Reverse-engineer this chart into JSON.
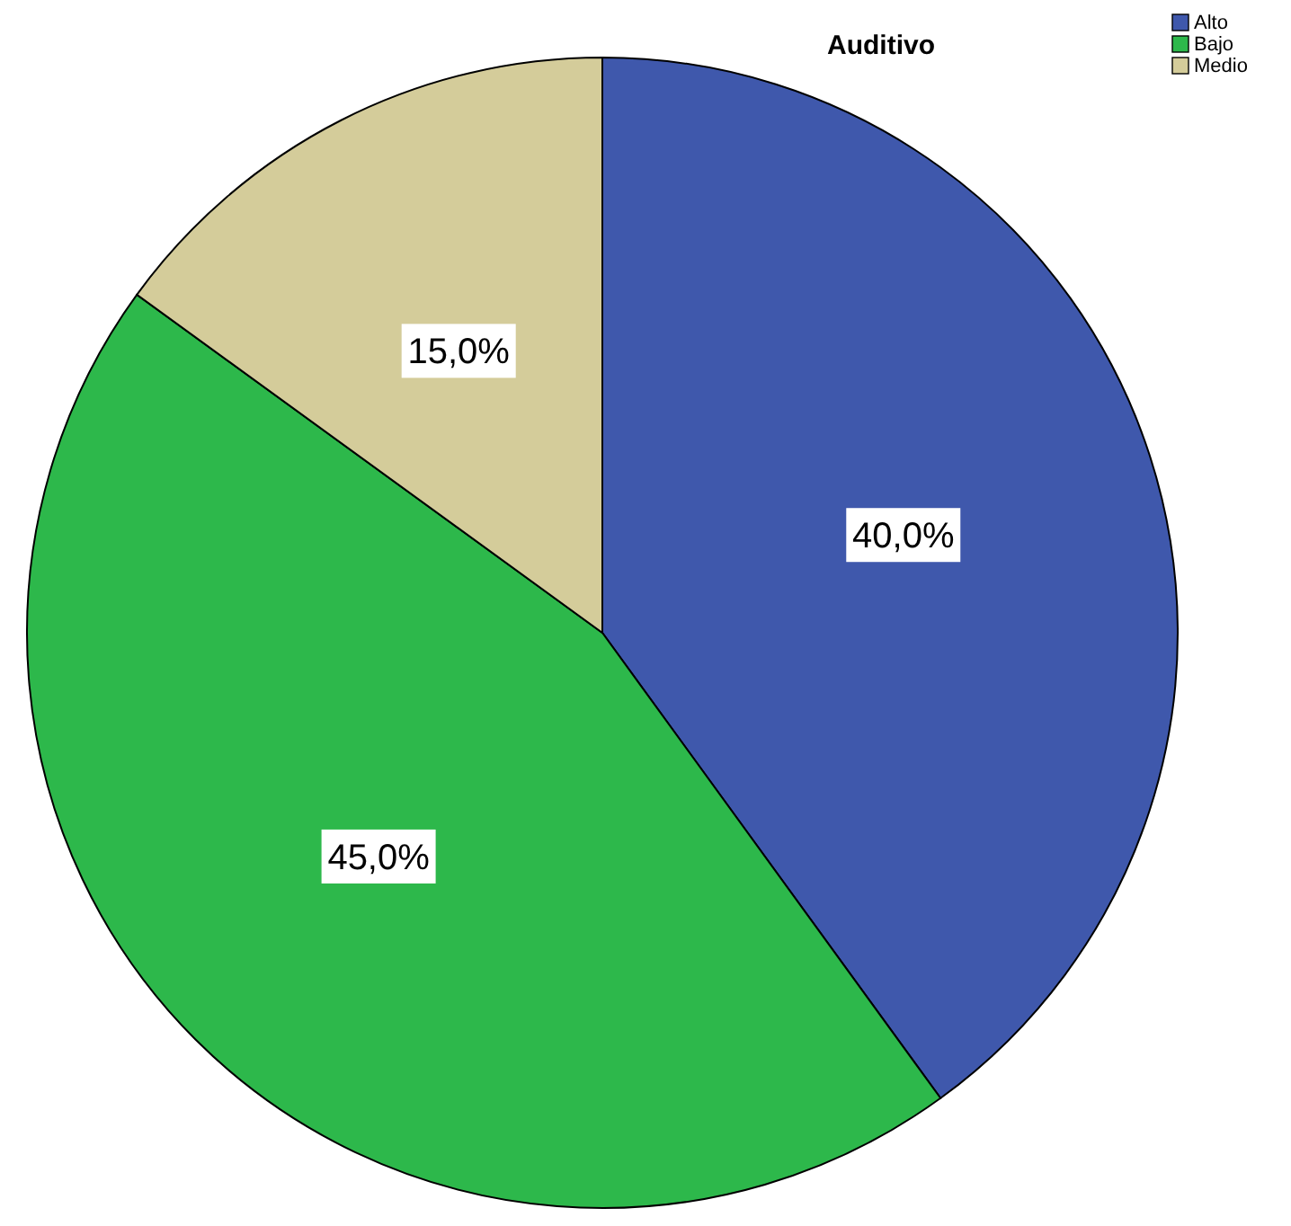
{
  "chart_data": {
    "type": "pie",
    "title": "Auditivo",
    "categories": [
      "Alto",
      "Bajo",
      "Medio"
    ],
    "values": [
      40,
      45,
      15
    ],
    "colors": [
      "#3f58ac",
      "#2db84b",
      "#d4cc9a"
    ],
    "value_labels": [
      "40,0%",
      "45,0%",
      "15,0%"
    ],
    "legend": "top right"
  }
}
